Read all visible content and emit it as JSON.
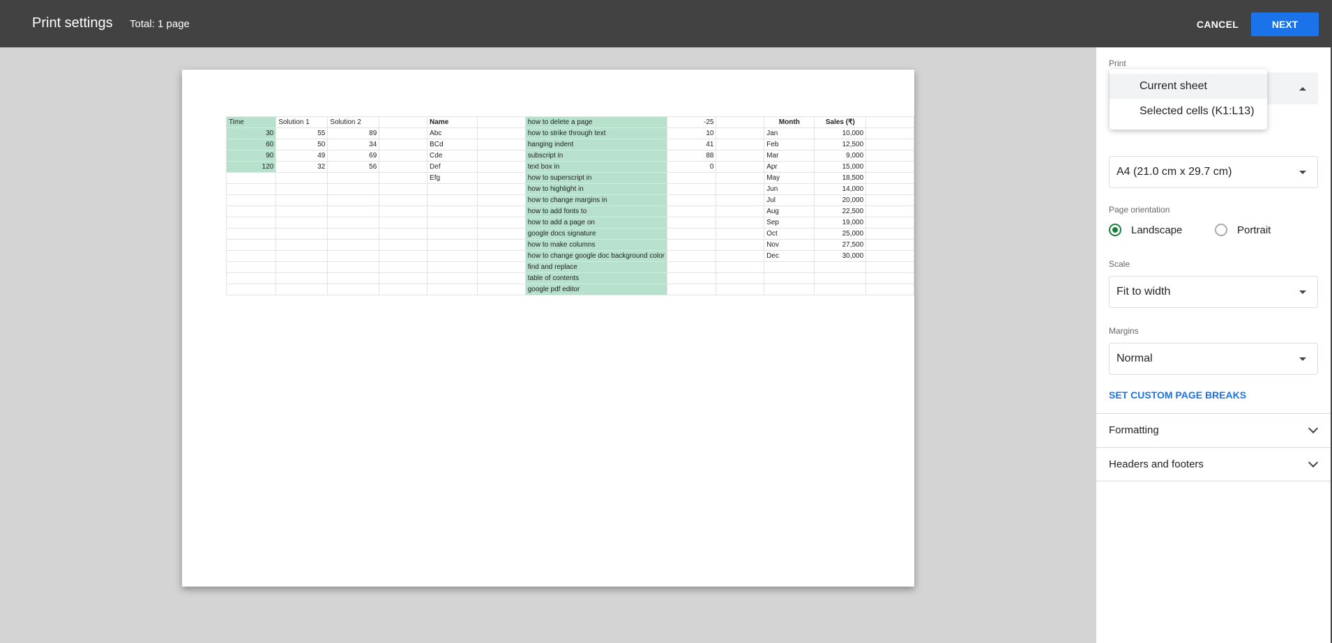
{
  "header": {
    "title": "Print settings",
    "total": "Total: 1 page",
    "cancel": "CANCEL",
    "next": "NEXT"
  },
  "sheet": {
    "rows": [
      [
        "Time",
        "Solution 1",
        "Solution 2",
        "",
        "Name",
        "",
        "how to delete a page",
        "-25",
        "",
        "Month",
        "Sales (₹)",
        ""
      ],
      [
        "30",
        "55",
        "89",
        "",
        "Abc",
        "",
        "how to strike through text",
        "10",
        "",
        "Jan",
        "10,000",
        ""
      ],
      [
        "60",
        "50",
        "34",
        "",
        "BCd",
        "",
        "hanging indent",
        "41",
        "",
        "Feb",
        "12,500",
        ""
      ],
      [
        "90",
        "49",
        "69",
        "",
        "Cde",
        "",
        "subscript in",
        "88",
        "",
        "Mar",
        "9,000",
        ""
      ],
      [
        "120",
        "32",
        "56",
        "",
        "Def",
        "",
        "text box in",
        "0",
        "",
        "Apr",
        "15,000",
        ""
      ],
      [
        "",
        "",
        "",
        "",
        "Efg",
        "",
        "how to superscript in",
        "",
        "",
        "May",
        "18,500",
        ""
      ],
      [
        "",
        "",
        "",
        "",
        "",
        "",
        "how to highlight in",
        "",
        "",
        "Jun",
        "14,000",
        ""
      ],
      [
        "",
        "",
        "",
        "",
        "",
        "",
        "how to change margins in",
        "",
        "",
        "Jul",
        "20,000",
        ""
      ],
      [
        "",
        "",
        "",
        "",
        "",
        "",
        "how to add fonts to",
        "",
        "",
        "Aug",
        "22,500",
        ""
      ],
      [
        "",
        "",
        "",
        "",
        "",
        "",
        "how to add a page on",
        "",
        "",
        "Sep",
        "19,000",
        ""
      ],
      [
        "",
        "",
        "",
        "",
        "",
        "",
        "google docs signature",
        "",
        "",
        "Oct",
        "25,000",
        ""
      ],
      [
        "",
        "",
        "",
        "",
        "",
        "",
        "how to make columns",
        "",
        "",
        "Nov",
        "27,500",
        ""
      ],
      [
        "",
        "",
        "",
        "",
        "",
        "",
        "how to change google doc background color",
        "",
        "",
        "Dec",
        "30,000",
        ""
      ],
      [
        "",
        "",
        "",
        "",
        "",
        "",
        "find and replace",
        "",
        "",
        "",
        "",
        ""
      ],
      [
        "",
        "",
        "",
        "",
        "",
        "",
        "table of contents",
        "",
        "",
        "",
        "",
        ""
      ],
      [
        "",
        "",
        "",
        "",
        "",
        "",
        "google pdf editor",
        "",
        "",
        "",
        "",
        ""
      ]
    ],
    "highlight_color": "#b7e1cd"
  },
  "sidebar": {
    "print_label": "Print",
    "print_options": [
      "Current sheet",
      "Selected cells (K1:L13)"
    ],
    "paper_size": "A4 (21.0 cm x 29.7 cm)",
    "orientation_label": "Page orientation",
    "orientation_options": [
      "Landscape",
      "Portrait"
    ],
    "orientation_selected": "Landscape",
    "scale_label": "Scale",
    "scale": "Fit to width",
    "margins_label": "Margins",
    "margins": "Normal",
    "custom_breaks": "SET CUSTOM PAGE BREAKS",
    "sections": [
      "Formatting",
      "Headers and footers"
    ],
    "accent": "#1a73e8"
  }
}
